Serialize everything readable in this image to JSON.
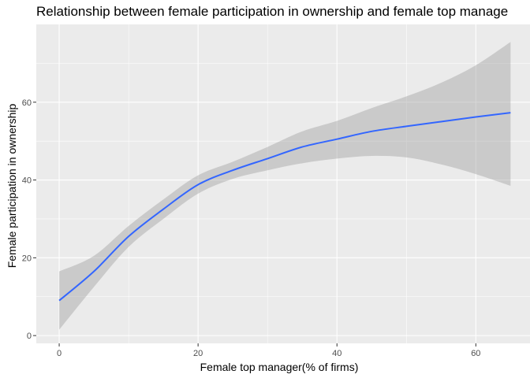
{
  "chart_data": {
    "type": "line",
    "title": "Relationship between female participation in ownership and female top manage",
    "xlabel": "Female top manager(% of firms)",
    "ylabel": "Female participation in ownership",
    "xlim": [
      -3.3,
      67.8
    ],
    "ylim": [
      -2.0,
      80.0
    ],
    "x_ticks": [
      0,
      20,
      40,
      60
    ],
    "y_ticks": [
      0,
      20,
      40,
      60
    ],
    "x_tick_labels": [
      "0",
      "20",
      "40",
      "60"
    ],
    "y_tick_labels": [
      "0",
      "20",
      "40",
      "60"
    ],
    "grid": true,
    "smoother": "loess with confidence band",
    "series": [
      {
        "line_color": "#3366ff",
        "band_color": "#999999",
        "x": [
          0,
          5,
          10,
          15,
          20,
          25,
          30,
          35,
          40,
          45,
          50,
          55,
          60,
          65
        ],
        "y": [
          9.0,
          16.5,
          25.5,
          32.5,
          38.8,
          42.5,
          45.5,
          48.5,
          50.5,
          52.5,
          53.8,
          55.0,
          56.2,
          57.3
        ],
        "lower": [
          1.5,
          12.5,
          22.8,
          30.0,
          36.5,
          40.3,
          42.5,
          44.3,
          45.5,
          46.2,
          45.8,
          44.0,
          41.5,
          38.5
        ],
        "upper": [
          16.5,
          20.5,
          28.2,
          35.0,
          41.2,
          44.7,
          48.5,
          52.5,
          55.2,
          58.5,
          61.5,
          65.0,
          69.5,
          75.5
        ]
      }
    ],
    "colors": {
      "panel_background": "#ebebeb",
      "grid_major": "#ffffff",
      "page_background": "#ffffff"
    }
  }
}
